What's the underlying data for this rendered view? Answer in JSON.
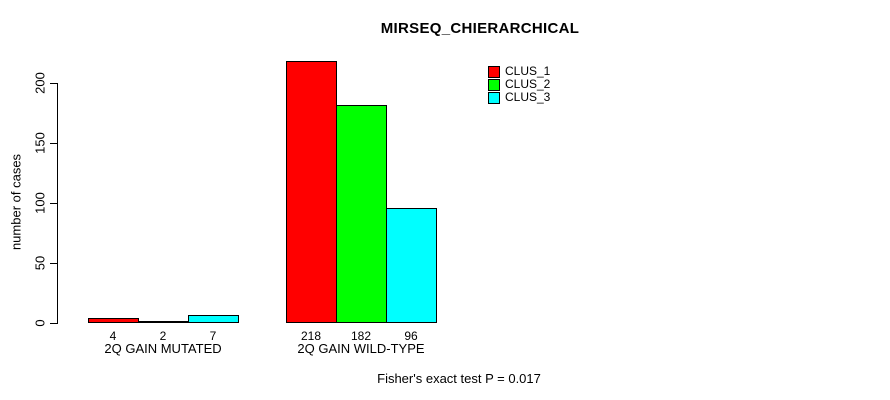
{
  "title": "MIRSEQ_CHIERARCHICAL",
  "footer": "Fisher's exact test P = 0.017",
  "chart_data": {
    "type": "bar",
    "title": "MIRSEQ_CHIERARCHICAL",
    "categories": [
      "2Q GAIN MUTATED",
      "2Q GAIN WILD-TYPE"
    ],
    "series": [
      {
        "name": "CLUS_1",
        "color": "#ff0000",
        "values": [
          4,
          218
        ]
      },
      {
        "name": "CLUS_2",
        "color": "#00ff00",
        "values": [
          2,
          182
        ]
      },
      {
        "name": "CLUS_3",
        "color": "#00ffff",
        "values": [
          7,
          96
        ]
      }
    ],
    "bar_value_labels": [
      [
        "4",
        "2",
        "7"
      ],
      [
        "218",
        "182",
        "96"
      ]
    ],
    "xlabel": "",
    "ylabel": "number of cases",
    "yticks": [
      0,
      50,
      100,
      150,
      200
    ],
    "ylim": [
      0,
      200
    ],
    "grid": false,
    "legend_position": "top-right",
    "annotation": "Fisher's exact test P = 0.017"
  }
}
